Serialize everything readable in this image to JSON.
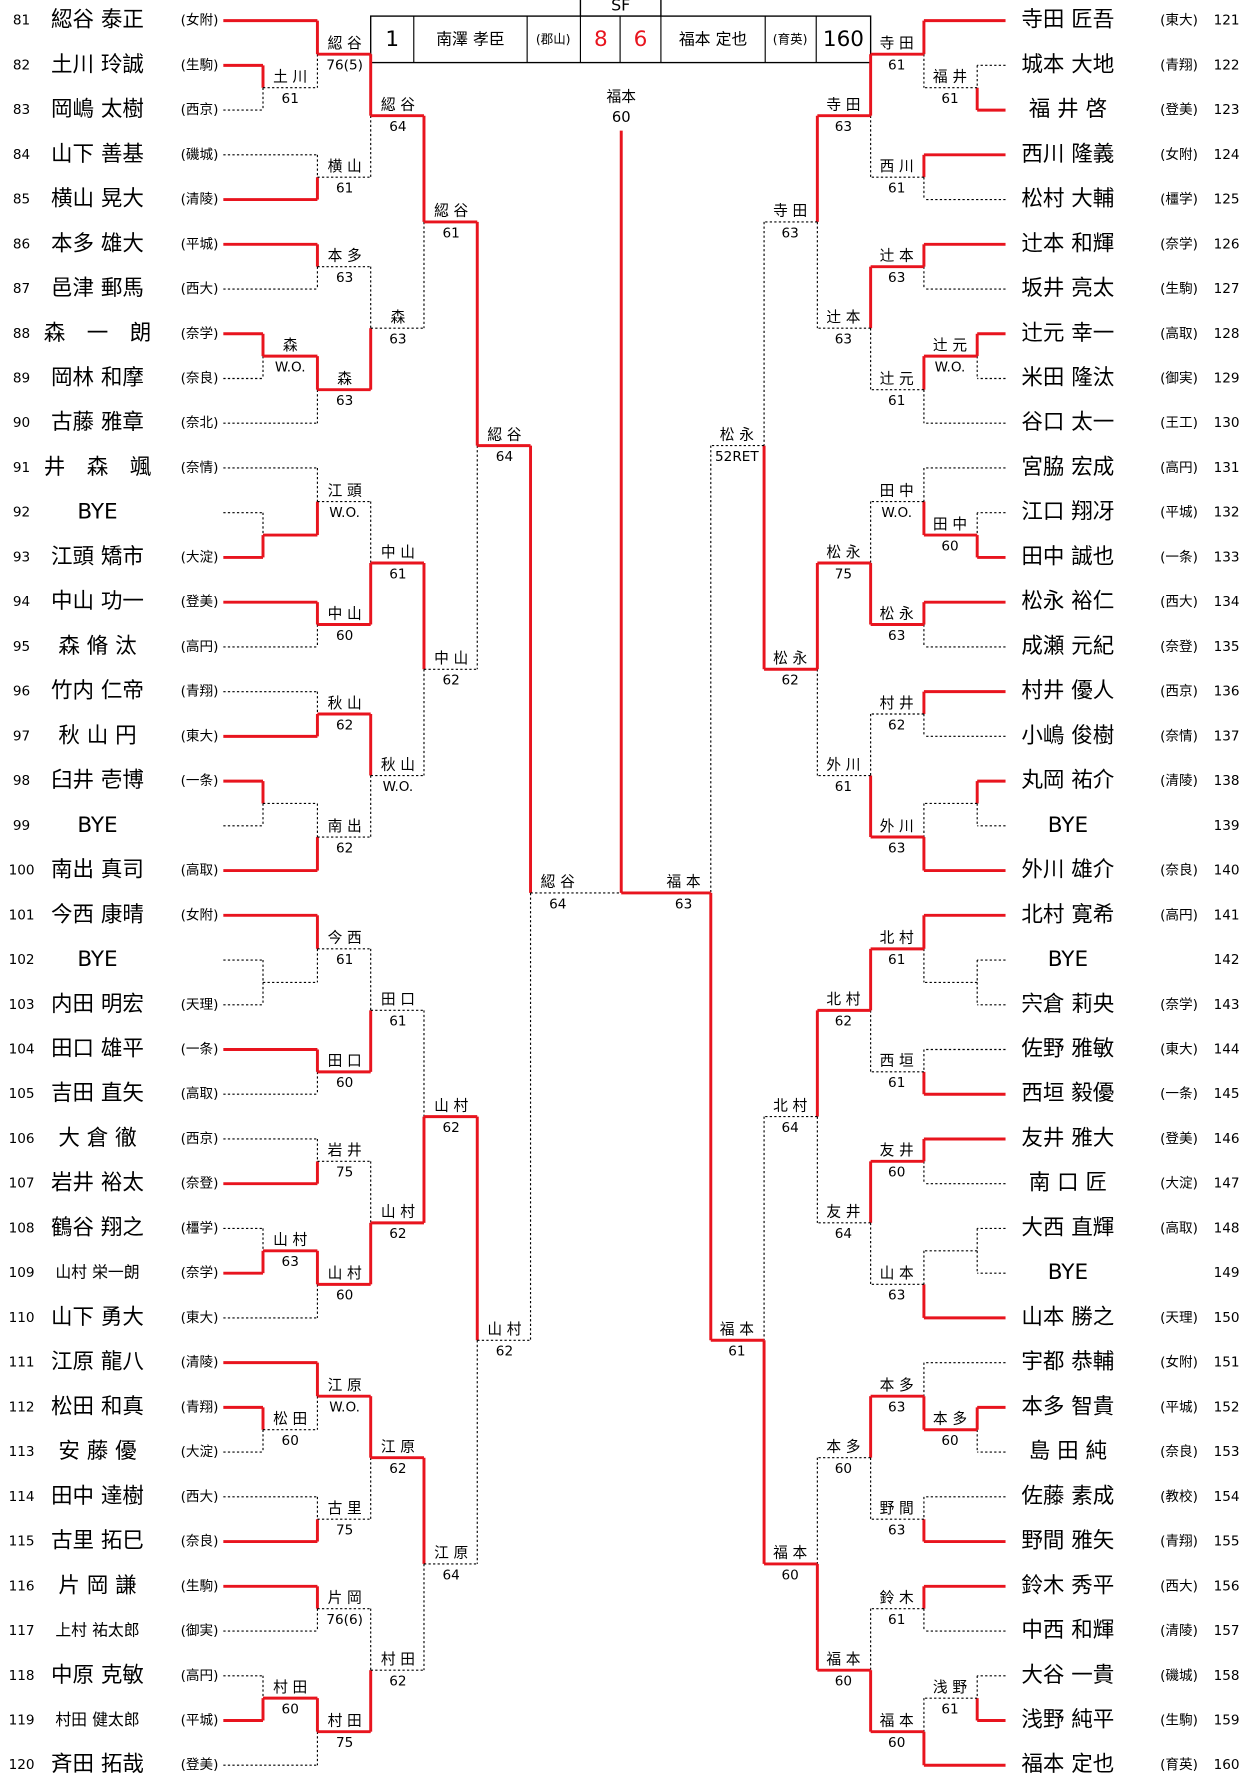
{
  "sf_box": {
    "round": "SF",
    "seed1": 1,
    "player1": "南澤 孝臣",
    "school1": "(郡山)",
    "score1": 8,
    "score2": 6,
    "player2": "福本 定也",
    "school2": "(育英)",
    "seed2": 160
  },
  "final": {
    "name": "福本",
    "score": "60"
  },
  "left_players": [
    {
      "num": 81,
      "name": "綛谷 泰正",
      "school": "(女附)"
    },
    {
      "num": 82,
      "name": "土川 玲誠",
      "school": "(生駒)"
    },
    {
      "num": 83,
      "name": "岡嶋 太樹",
      "school": "(西京)"
    },
    {
      "num": 84,
      "name": "山下 善基",
      "school": "(磯城)"
    },
    {
      "num": 85,
      "name": "横山 晃大",
      "school": "(清陵)"
    },
    {
      "num": 86,
      "name": "本多 雄大",
      "school": "(平城)"
    },
    {
      "num": 87,
      "name": "邑津 郵馬",
      "school": "(西大)"
    },
    {
      "num": 88,
      "name": "森　一　朗",
      "school": "(奈学)"
    },
    {
      "num": 89,
      "name": "岡林 和摩",
      "school": "(奈良)"
    },
    {
      "num": 90,
      "name": "古藤 雅章",
      "school": "(奈北)"
    },
    {
      "num": 91,
      "name": "井　森　颯",
      "school": "(奈情)"
    },
    {
      "num": 92,
      "name": "BYE"
    },
    {
      "num": 93,
      "name": "江頭 矯市",
      "school": "(大淀)"
    },
    {
      "num": 94,
      "name": "中山 功一",
      "school": "(登美)"
    },
    {
      "num": 95,
      "name": "森 脩 汰",
      "school": "(高円)"
    },
    {
      "num": 96,
      "name": "竹内 仁帝",
      "school": "(青翔)"
    },
    {
      "num": 97,
      "name": "秋 山 円",
      "school": "(東大)"
    },
    {
      "num": 98,
      "name": "臼井 壱博",
      "school": "(一条)"
    },
    {
      "num": 99,
      "name": "BYE"
    },
    {
      "num": 100,
      "name": "南出 真司",
      "school": "(高取)"
    },
    {
      "num": 101,
      "name": "今西 康晴",
      "school": "(女附)"
    },
    {
      "num": 102,
      "name": "BYE"
    },
    {
      "num": 103,
      "name": "内田 明宏",
      "school": "(天理)"
    },
    {
      "num": 104,
      "name": "田口 雄平",
      "school": "(一条)"
    },
    {
      "num": 105,
      "name": "吉田 直矢",
      "school": "(高取)"
    },
    {
      "num": 106,
      "name": "大 倉 徹",
      "school": "(西京)"
    },
    {
      "num": 107,
      "name": "岩井 裕太",
      "school": "(奈登)"
    },
    {
      "num": 108,
      "name": "鶴谷 翔之",
      "school": "(橿学)"
    },
    {
      "num": 109,
      "name": "山村 栄一朗",
      "school": "(奈学)"
    },
    {
      "num": 110,
      "name": "山下 勇大",
      "school": "(東大)"
    },
    {
      "num": 111,
      "name": "江原 龍八",
      "school": "(清陵)"
    },
    {
      "num": 112,
      "name": "松田 和真",
      "school": "(青翔)"
    },
    {
      "num": 113,
      "name": "安 藤 優",
      "school": "(大淀)"
    },
    {
      "num": 114,
      "name": "田中 達樹",
      "school": "(西大)"
    },
    {
      "num": 115,
      "name": "古里 拓巳",
      "school": "(奈良)"
    },
    {
      "num": 116,
      "name": "片 岡 謙",
      "school": "(生駒)"
    },
    {
      "num": 117,
      "name": "上村 祐太郎",
      "school": "(御実)"
    },
    {
      "num": 118,
      "name": "中原 克敏",
      "school": "(高円)"
    },
    {
      "num": 119,
      "name": "村田 健太郎",
      "school": "(平城)"
    },
    {
      "num": 120,
      "name": "斉田 拓哉",
      "school": "(登美)"
    }
  ],
  "right_players": [
    {
      "num": 121,
      "name": "寺田 匠吾",
      "school": "(東大)"
    },
    {
      "num": 122,
      "name": "城本 大地",
      "school": "(青翔)"
    },
    {
      "num": 123,
      "name": "福 井 啓",
      "school": "(登美)"
    },
    {
      "num": 124,
      "name": "西川 隆義",
      "school": "(女附)"
    },
    {
      "num": 125,
      "name": "松村 大輔",
      "school": "(橿学)"
    },
    {
      "num": 126,
      "name": "辻本 和輝",
      "school": "(奈学)"
    },
    {
      "num": 127,
      "name": "坂井 亮太",
      "school": "(生駒)"
    },
    {
      "num": 128,
      "name": "辻元 幸一",
      "school": "(高取)"
    },
    {
      "num": 129,
      "name": "米田 隆汰",
      "school": "(御実)"
    },
    {
      "num": 130,
      "name": "谷口 太一",
      "school": "(王工)"
    },
    {
      "num": 131,
      "name": "宮脇 宏成",
      "school": "(高円)"
    },
    {
      "num": 132,
      "name": "江口 翔冴",
      "school": "(平城)"
    },
    {
      "num": 133,
      "name": "田中 誠也",
      "school": "(一条)"
    },
    {
      "num": 134,
      "name": "松永 裕仁",
      "school": "(西大)"
    },
    {
      "num": 135,
      "name": "成瀬 元紀",
      "school": "(奈登)"
    },
    {
      "num": 136,
      "name": "村井 優人",
      "school": "(西京)"
    },
    {
      "num": 137,
      "name": "小嶋 俊樹",
      "school": "(奈情)"
    },
    {
      "num": 138,
      "name": "丸岡 祐介",
      "school": "(清陵)"
    },
    {
      "num": 139,
      "name": "BYE"
    },
    {
      "num": 140,
      "name": "外川 雄介",
      "school": "(奈良)"
    },
    {
      "num": 141,
      "name": "北村 寛希",
      "school": "(高円)"
    },
    {
      "num": 142,
      "name": "BYE"
    },
    {
      "num": 143,
      "name": "宍倉 莉央",
      "school": "(奈学)"
    },
    {
      "num": 144,
      "name": "佐野 雅敏",
      "school": "(東大)"
    },
    {
      "num": 145,
      "name": "西垣 毅優",
      "school": "(一条)"
    },
    {
      "num": 146,
      "name": "友井 雅大",
      "school": "(登美)"
    },
    {
      "num": 147,
      "name": "南 口 匠",
      "school": "(大淀)"
    },
    {
      "num": 148,
      "name": "大西 直輝",
      "school": "(高取)"
    },
    {
      "num": 149,
      "name": "BYE"
    },
    {
      "num": 150,
      "name": "山本 勝之",
      "school": "(天理)"
    },
    {
      "num": 151,
      "name": "宇都 恭輔",
      "school": "(女附)"
    },
    {
      "num": 152,
      "name": "本多 智貴",
      "school": "(平城)"
    },
    {
      "num": 153,
      "name": "島 田 純",
      "school": "(奈良)"
    },
    {
      "num": 154,
      "name": "佐藤 素成",
      "school": "(教校)"
    },
    {
      "num": 155,
      "name": "野間 雅矢",
      "school": "(青翔)"
    },
    {
      "num": 156,
      "name": "鈴木 秀平",
      "school": "(西大)"
    },
    {
      "num": 157,
      "name": "中西 和輝",
      "school": "(清陵)"
    },
    {
      "num": 158,
      "name": "大谷 一貴",
      "school": "(磯城)"
    },
    {
      "num": 159,
      "name": "浅野 純平",
      "school": "(生駒)"
    },
    {
      "num": 160,
      "name": "福本 定也",
      "school": "(育英)"
    }
  ],
  "left_matches": [
    {
      "name": "土 川",
      "score": "61"
    },
    {
      "name": "綛 谷",
      "score": "76(5)"
    },
    {
      "name": "横 山",
      "score": "61"
    },
    {
      "name": "綛 谷",
      "score": "64"
    },
    {
      "name": "本 多",
      "score": "63"
    },
    {
      "name": "森",
      "score": "W.O."
    },
    {
      "name": "森",
      "score": "63"
    },
    {
      "name": "森",
      "score": "63"
    },
    {
      "name": "綛 谷",
      "score": "61"
    },
    {
      "name": "江 頭",
      "score": "W.O."
    },
    {
      "name": "中 山",
      "score": "60"
    },
    {
      "name": "中 山",
      "score": "61"
    },
    {
      "name": "秋 山",
      "score": "62"
    },
    {
      "name": "南 出",
      "score": "62"
    },
    {
      "name": "秋 山",
      "score": "W.O."
    },
    {
      "name": "中 山",
      "score": "62"
    },
    {
      "name": "綛 谷",
      "score": "64"
    },
    {
      "name": "今 西",
      "score": "61"
    },
    {
      "name": "田 口",
      "score": "60"
    },
    {
      "name": "田 口",
      "score": "61"
    },
    {
      "name": "岩 井",
      "score": "75"
    },
    {
      "name": "山 村",
      "score": "63"
    },
    {
      "name": "山 村",
      "score": "60"
    },
    {
      "name": "山 村",
      "score": "62"
    },
    {
      "name": "山 村",
      "score": "62"
    },
    {
      "name": "松 田",
      "score": "60"
    },
    {
      "name": "江 原",
      "score": "W.O."
    },
    {
      "name": "古 里",
      "score": "75"
    },
    {
      "name": "江 原",
      "score": "62"
    },
    {
      "name": "片 岡",
      "score": "76(6)"
    },
    {
      "name": "村 田",
      "score": "60"
    },
    {
      "name": "村 田",
      "score": "75"
    },
    {
      "name": "村 田",
      "score": "62"
    },
    {
      "name": "江 原",
      "score": "64"
    },
    {
      "name": "山 村",
      "score": "62"
    },
    {
      "name": "綛 谷",
      "score": "64"
    }
  ],
  "right_matches": [
    {
      "name": "福 井",
      "score": "61"
    },
    {
      "name": "寺 田",
      "score": "61"
    },
    {
      "name": "西 川",
      "score": "61"
    },
    {
      "name": "寺 田",
      "score": "63"
    },
    {
      "name": "辻 本",
      "score": "63"
    },
    {
      "name": "辻 元",
      "score": "W.O."
    },
    {
      "name": "辻 元",
      "score": "61"
    },
    {
      "name": "辻 本",
      "score": "63"
    },
    {
      "name": "寺 田",
      "score": "63"
    },
    {
      "name": "田 中",
      "score": "60"
    },
    {
      "name": "田 中",
      "score": "W.O."
    },
    {
      "name": "松 永",
      "score": "63"
    },
    {
      "name": "松 永",
      "score": "75"
    },
    {
      "name": "村 井",
      "score": "62"
    },
    {
      "name": "外 川",
      "score": "63"
    },
    {
      "name": "外 川",
      "score": "61"
    },
    {
      "name": "松 永",
      "score": "62"
    },
    {
      "name": "松 永",
      "score": "52RET"
    },
    {
      "name": "北 村",
      "score": "61"
    },
    {
      "name": "西 垣",
      "score": "61"
    },
    {
      "name": "北 村",
      "score": "62"
    },
    {
      "name": "友 井",
      "score": "60"
    },
    {
      "name": "山 本",
      "score": "63"
    },
    {
      "name": "友 井",
      "score": "64"
    },
    {
      "name": "北 村",
      "score": "64"
    },
    {
      "name": "本 多",
      "score": "60"
    },
    {
      "name": "本 多",
      "score": "63"
    },
    {
      "name": "野 間",
      "score": "63"
    },
    {
      "name": "本 多",
      "score": "60"
    },
    {
      "name": "鈴 木",
      "score": "61"
    },
    {
      "name": "浅 野",
      "score": "61"
    },
    {
      "name": "福 本",
      "score": "60"
    },
    {
      "name": "福 本",
      "score": "60"
    },
    {
      "name": "福 本",
      "score": "60"
    },
    {
      "name": "福 本",
      "score": "61"
    },
    {
      "name": "福 本",
      "score": "63"
    }
  ]
}
